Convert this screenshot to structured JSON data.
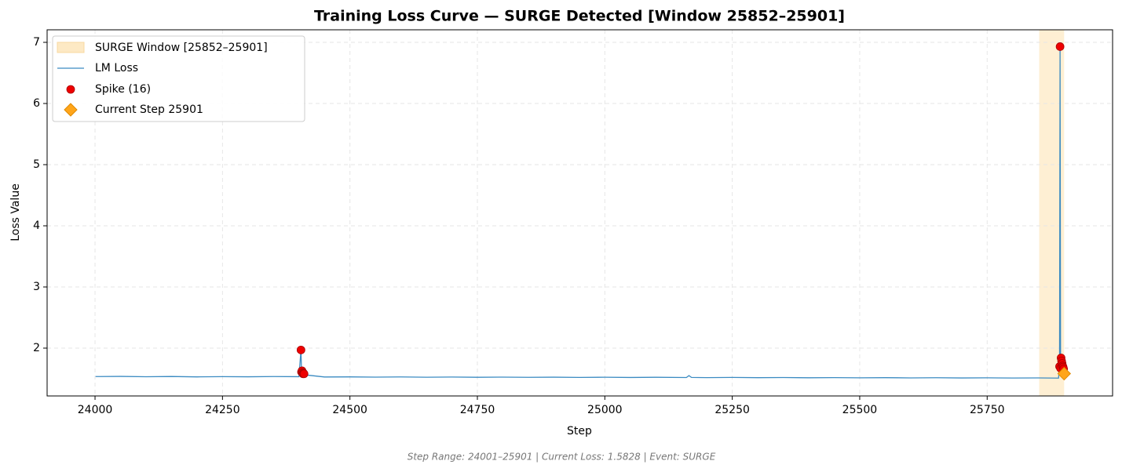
{
  "chart_data": {
    "type": "line",
    "title": "Training Loss Curve — SURGE Detected [Window 25852–25901]",
    "x_label": "Step",
    "y_label": "Loss Value",
    "footer": "Step Range: 24001–25901 | Current Loss: 1.5828 | Event: SURGE",
    "xlim": [
      23906,
      25996
    ],
    "ylim": [
      1.218,
      7.205
    ],
    "xticks": [
      24000,
      24250,
      24500,
      24750,
      25000,
      25250,
      25500,
      25750
    ],
    "yticks": [
      2,
      3,
      4,
      5,
      6,
      7
    ],
    "grid": true,
    "window": {
      "name": "SURGE Window [25852–25901]",
      "color": "#fde9c4",
      "range": [
        25852,
        25901
      ]
    },
    "series": [
      {
        "name": "LM Loss",
        "color": "#3b8bc2",
        "x": [
          24001,
          24050,
          24100,
          24150,
          24200,
          24250,
          24300,
          24350,
          24400,
          24404,
          24405,
          24406,
          24407,
          24408,
          24409,
          24410,
          24415,
          24450,
          24500,
          24550,
          24600,
          24650,
          24700,
          24750,
          24800,
          24850,
          24900,
          24950,
          25000,
          25050,
          25100,
          25160,
          25165,
          25170,
          25200,
          25250,
          25300,
          25350,
          25400,
          25450,
          25500,
          25550,
          25600,
          25650,
          25700,
          25750,
          25800,
          25850,
          25890,
          25892,
          25893,
          25894,
          25895,
          25896,
          25897,
          25898,
          25899,
          25900,
          25901
        ],
        "values": [
          1.535,
          1.538,
          1.532,
          1.536,
          1.53,
          1.534,
          1.531,
          1.535,
          1.533,
          1.97,
          1.61,
          1.63,
          1.6,
          1.58,
          1.59,
          1.58,
          1.56,
          1.528,
          1.53,
          1.526,
          1.529,
          1.524,
          1.527,
          1.523,
          1.526,
          1.522,
          1.525,
          1.521,
          1.524,
          1.52,
          1.523,
          1.519,
          1.55,
          1.521,
          1.518,
          1.521,
          1.517,
          1.519,
          1.515,
          1.518,
          1.514,
          1.517,
          1.513,
          1.516,
          1.512,
          1.514,
          1.511,
          1.513,
          1.51,
          1.7,
          6.93,
          1.67,
          1.84,
          1.79,
          1.75,
          1.71,
          1.69,
          1.66,
          1.5828
        ]
      }
    ],
    "spikes": {
      "name": "Spike (16)",
      "color": "#ee0000",
      "x": [
        24404,
        24405,
        24406,
        24407,
        24408,
        24409,
        24410,
        25892,
        25893,
        25894,
        25895,
        25896,
        25897,
        25898,
        25899,
        25900
      ],
      "values": [
        1.97,
        1.61,
        1.63,
        1.6,
        1.58,
        1.59,
        1.58,
        1.7,
        6.93,
        1.67,
        1.84,
        1.79,
        1.75,
        1.71,
        1.69,
        1.66
      ]
    },
    "current": {
      "name": "Current Step 25901",
      "color": "#ffa51a",
      "x": 25901,
      "value": 1.5828
    }
  }
}
